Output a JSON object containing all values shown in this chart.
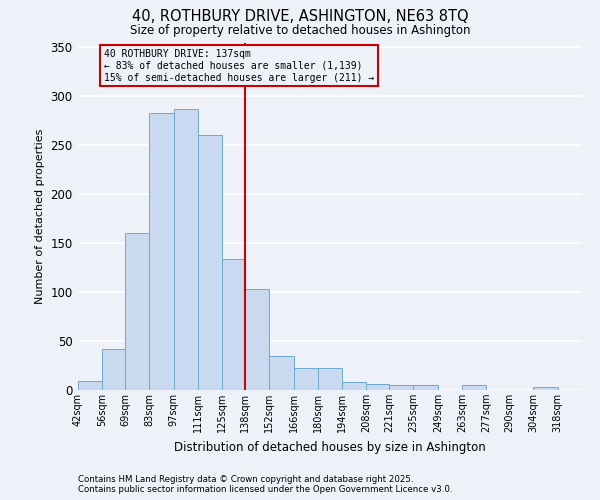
{
  "title": "40, ROTHBURY DRIVE, ASHINGTON, NE63 8TQ",
  "subtitle": "Size of property relative to detached houses in Ashington",
  "xlabel": "Distribution of detached houses by size in Ashington",
  "ylabel": "Number of detached properties",
  "bin_labels": [
    "42sqm",
    "56sqm",
    "69sqm",
    "83sqm",
    "97sqm",
    "111sqm",
    "125sqm",
    "138sqm",
    "152sqm",
    "166sqm",
    "180sqm",
    "194sqm",
    "208sqm",
    "221sqm",
    "235sqm",
    "249sqm",
    "263sqm",
    "277sqm",
    "290sqm",
    "304sqm",
    "318sqm"
  ],
  "bin_edges": [
    42,
    56,
    69,
    83,
    97,
    111,
    125,
    138,
    152,
    166,
    180,
    194,
    208,
    221,
    235,
    249,
    263,
    277,
    290,
    304,
    318,
    332
  ],
  "bar_heights": [
    9,
    42,
    160,
    283,
    287,
    261,
    134,
    103,
    35,
    22,
    22,
    8,
    6,
    5,
    5,
    0,
    5,
    0,
    0,
    3,
    0
  ],
  "bar_color": "#c8d9f0",
  "bar_edge_color": "#6aaad4",
  "vline_x": 138,
  "vline_color": "#cc0000",
  "annotation_title": "40 ROTHBURY DRIVE: 137sqm",
  "annotation_line1": "← 83% of detached houses are smaller (1,139)",
  "annotation_line2": "15% of semi-detached houses are larger (211) →",
  "annotation_box_color": "#cc0000",
  "ylim": [
    0,
    355
  ],
  "yticks": [
    0,
    50,
    100,
    150,
    200,
    250,
    300,
    350
  ],
  "footnote1": "Contains HM Land Registry data © Crown copyright and database right 2025.",
  "footnote2": "Contains public sector information licensed under the Open Government Licence v3.0.",
  "background_color": "#eef2f8",
  "grid_color": "#ffffff"
}
